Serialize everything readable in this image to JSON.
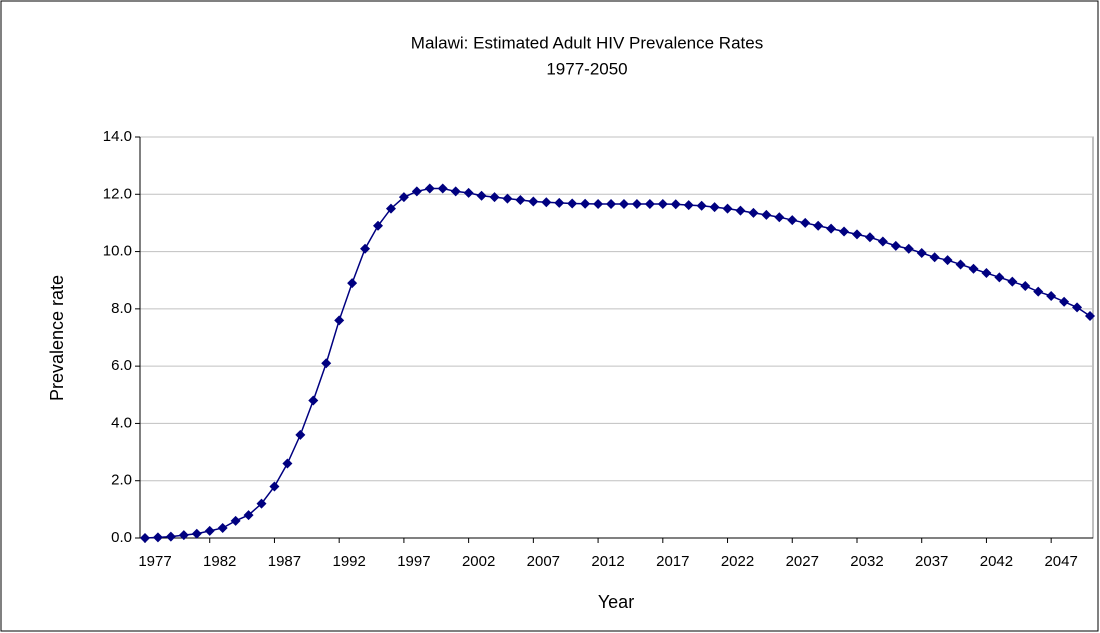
{
  "chart_data": {
    "type": "line",
    "title": "Malawi: Estimated Adult HIV Prevalence Rates",
    "subtitle": "1977-2050",
    "x_label": "Year",
    "y_label": "Prevalence rate",
    "x": [
      1977,
      1978,
      1979,
      1980,
      1981,
      1982,
      1983,
      1984,
      1985,
      1986,
      1987,
      1988,
      1989,
      1990,
      1991,
      1992,
      1993,
      1994,
      1995,
      1996,
      1997,
      1998,
      1999,
      2000,
      2001,
      2002,
      2003,
      2004,
      2005,
      2006,
      2007,
      2008,
      2009,
      2010,
      2011,
      2012,
      2013,
      2014,
      2015,
      2016,
      2017,
      2018,
      2019,
      2020,
      2021,
      2022,
      2023,
      2024,
      2025,
      2026,
      2027,
      2028,
      2029,
      2030,
      2031,
      2032,
      2033,
      2034,
      2035,
      2036,
      2037,
      2038,
      2039,
      2040,
      2041,
      2042,
      2043,
      2044,
      2045,
      2046,
      2047,
      2048,
      2049,
      2050
    ],
    "values": [
      0.0,
      0.02,
      0.05,
      0.1,
      0.15,
      0.25,
      0.35,
      0.6,
      0.8,
      1.2,
      1.8,
      2.6,
      3.6,
      4.8,
      6.1,
      7.6,
      8.9,
      10.1,
      10.9,
      11.5,
      11.9,
      12.1,
      12.2,
      12.2,
      12.1,
      12.05,
      11.95,
      11.9,
      11.85,
      11.8,
      11.75,
      11.72,
      11.7,
      11.68,
      11.67,
      11.66,
      11.66,
      11.66,
      11.66,
      11.66,
      11.66,
      11.65,
      11.62,
      11.6,
      11.55,
      11.5,
      11.43,
      11.35,
      11.28,
      11.2,
      11.1,
      11.0,
      10.9,
      10.8,
      10.7,
      10.6,
      10.5,
      10.35,
      10.2,
      10.1,
      9.95,
      9.8,
      9.7,
      9.55,
      9.4,
      9.25,
      9.1,
      8.95,
      8.8,
      8.6,
      8.45,
      8.25,
      8.05,
      7.75
    ],
    "color": "#000080",
    "xlim": [
      1977,
      2050
    ],
    "xticks": [
      1977,
      1982,
      1987,
      1992,
      1997,
      2002,
      2007,
      2012,
      2017,
      2022,
      2027,
      2032,
      2037,
      2042,
      2047
    ],
    "ylim": [
      0,
      14
    ],
    "yticks": [
      {
        "value": 0,
        "label": "0.0"
      },
      {
        "value": 2,
        "label": "2.0"
      },
      {
        "value": 4,
        "label": "4.0"
      },
      {
        "value": 6,
        "label": "6.0"
      },
      {
        "value": 8,
        "label": "8.0"
      },
      {
        "value": 10,
        "label": "10.0"
      },
      {
        "value": 12,
        "label": "12.0"
      },
      {
        "value": 14,
        "label": "14.0"
      }
    ],
    "grid": true
  }
}
